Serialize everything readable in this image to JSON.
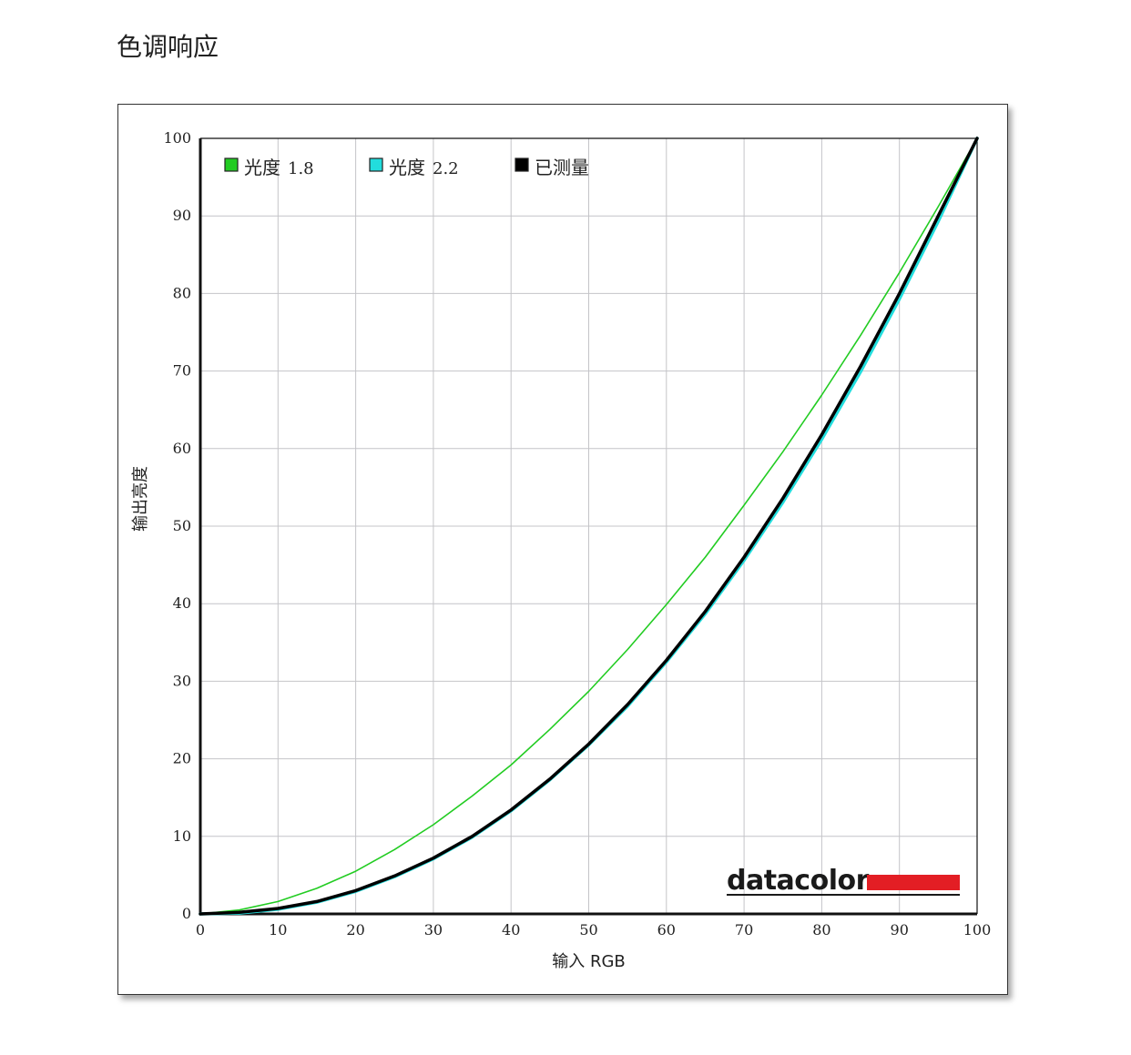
{
  "page": {
    "title": "色调响应"
  },
  "chart_data": {
    "type": "line",
    "title": "",
    "xlabel": "输入 RGB",
    "ylabel": "输出亮度",
    "xlim": [
      0,
      100
    ],
    "ylim": [
      0,
      100
    ],
    "x_ticks": [
      "0",
      "10",
      "20",
      "30",
      "40",
      "50",
      "60",
      "70",
      "80",
      "90",
      "100"
    ],
    "y_ticks": [
      "0",
      "10",
      "20",
      "30",
      "40",
      "50",
      "60",
      "70",
      "80",
      "90",
      "100"
    ],
    "grid": true,
    "legend_position": "top-left",
    "x": [
      0,
      5,
      10,
      15,
      20,
      25,
      30,
      35,
      40,
      45,
      50,
      55,
      60,
      65,
      70,
      75,
      80,
      85,
      90,
      95,
      100
    ],
    "series": [
      {
        "name": "光度",
        "label_number": "1.8",
        "color": "#22cc22",
        "values": [
          0,
          0.5,
          1.6,
          3.3,
          5.5,
          8.3,
          11.5,
          15.2,
          19.2,
          23.8,
          28.7,
          34.1,
          39.9,
          46.0,
          52.7,
          59.6,
          66.9,
          74.6,
          82.7,
          91.2,
          100
        ]
      },
      {
        "name": "光度",
        "label_number": "2.2",
        "color": "#22dddd",
        "values": [
          0,
          0.1,
          0.6,
          1.5,
          2.9,
          4.8,
          7.1,
          9.9,
          13.3,
          17.3,
          21.8,
          26.8,
          32.5,
          38.7,
          45.6,
          53.1,
          61.2,
          69.9,
          79.3,
          89.3,
          100
        ]
      },
      {
        "name": "已测量",
        "color": "#000000",
        "values": [
          0,
          0.2,
          0.7,
          1.6,
          3.0,
          4.9,
          7.2,
          10.0,
          13.4,
          17.4,
          21.9,
          27.0,
          32.7,
          39.0,
          46.0,
          53.6,
          61.8,
          70.6,
          80.0,
          90.0,
          100
        ]
      }
    ],
    "logo": {
      "text": "datacolor",
      "bar_color": "#e31e24"
    }
  }
}
